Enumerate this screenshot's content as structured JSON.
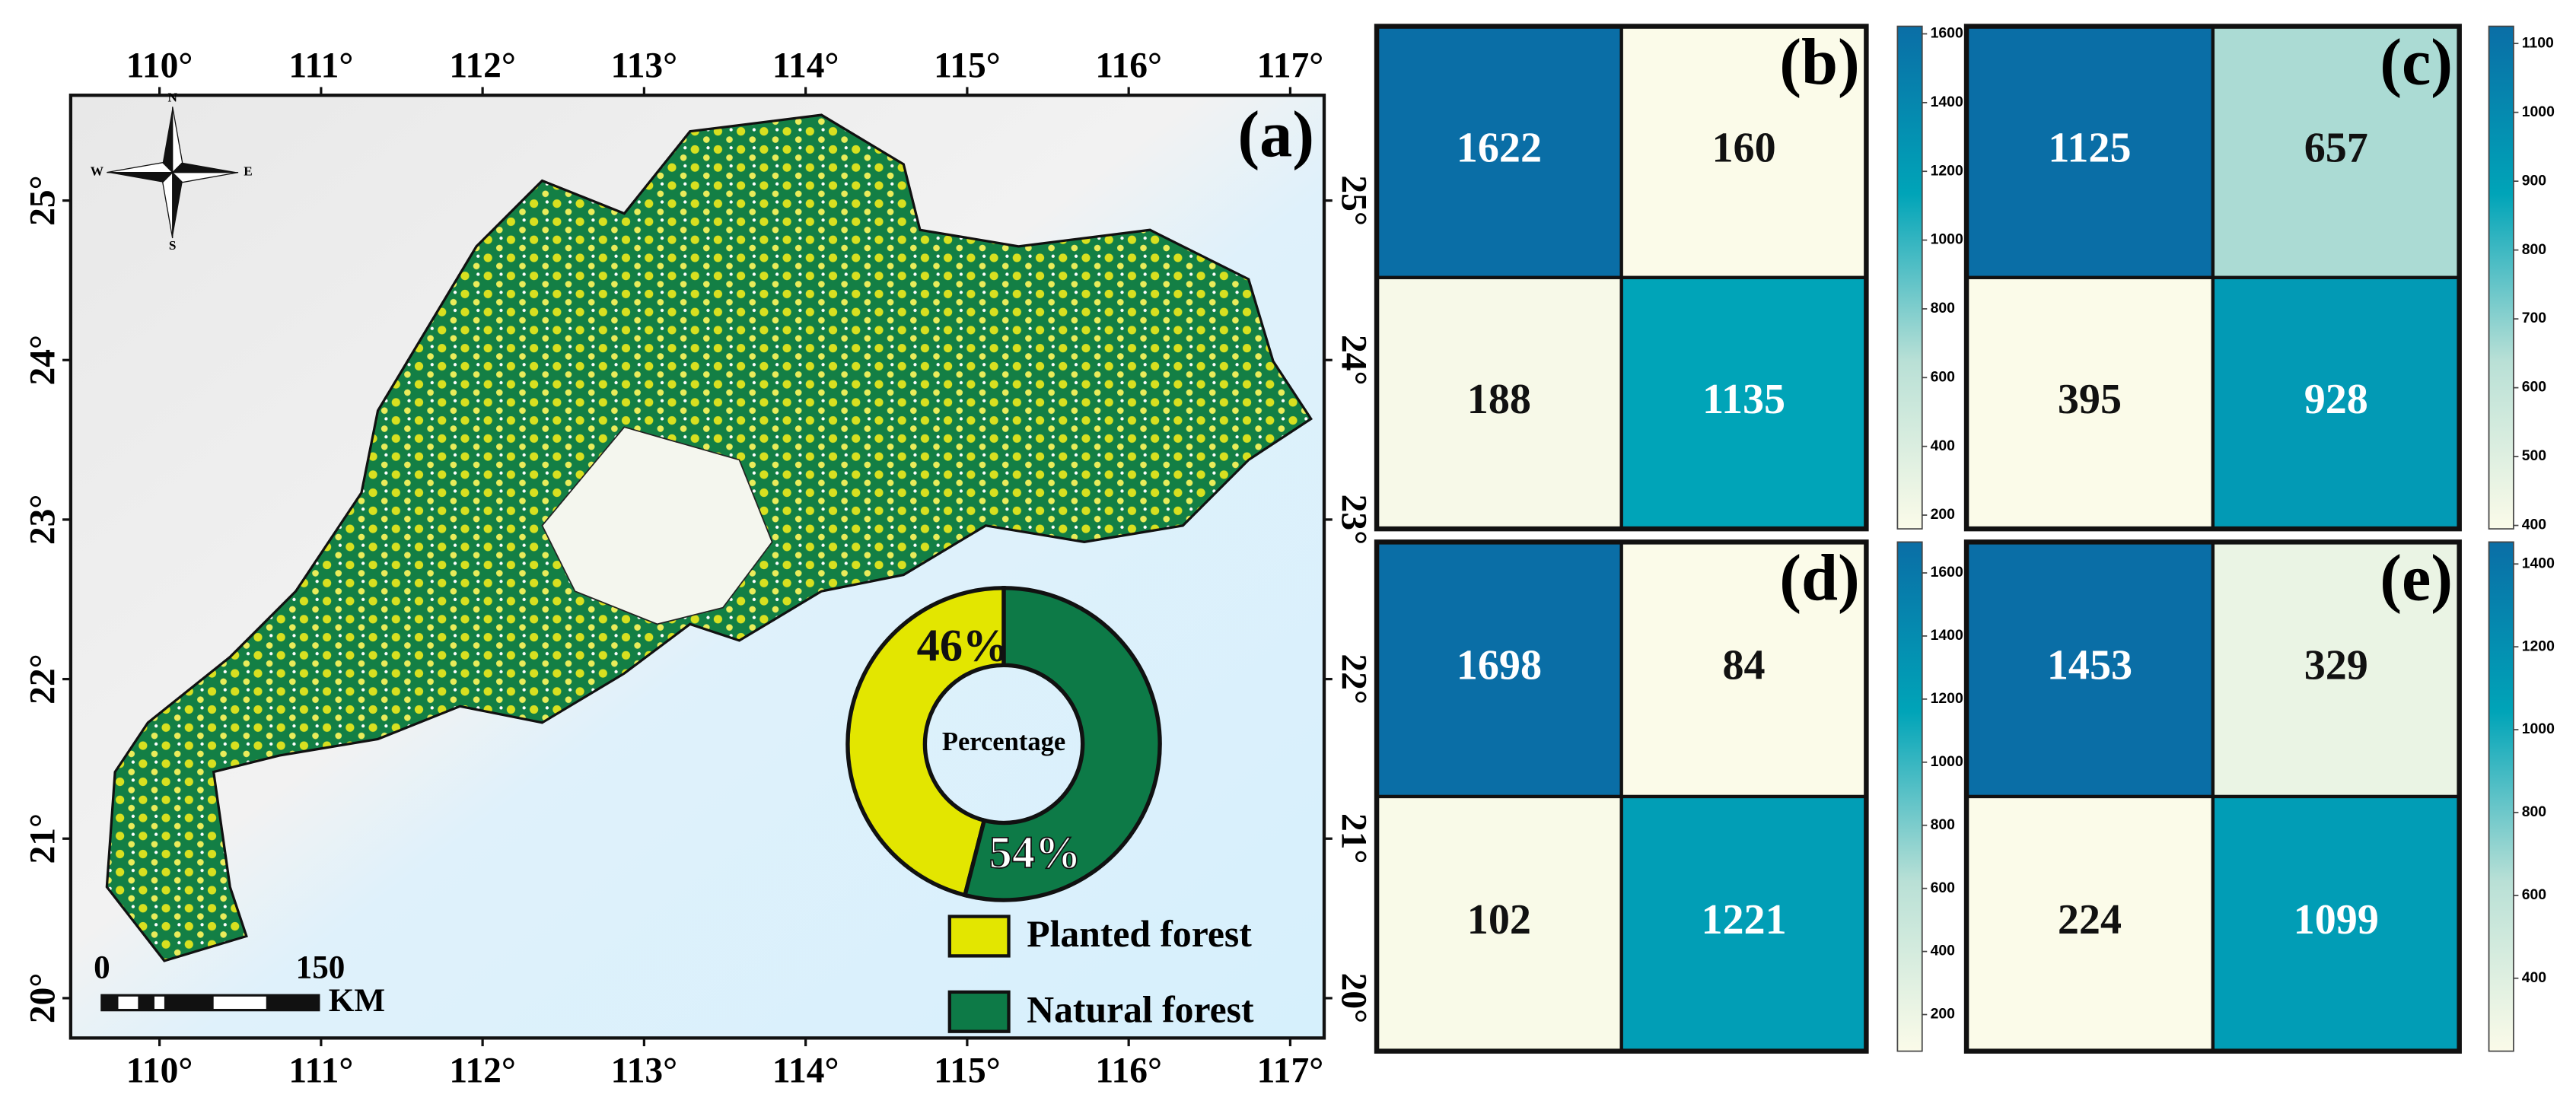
{
  "map": {
    "title": "(a)",
    "xlim": [
      109.45,
      117.21
    ],
    "ylim": [
      19.75,
      25.66
    ],
    "xticks": [
      {
        "value": 110,
        "label": "110°"
      },
      {
        "value": 111,
        "label": "111°"
      },
      {
        "value": 112,
        "label": "112°"
      },
      {
        "value": 113,
        "label": "113°"
      },
      {
        "value": 114,
        "label": "114°"
      },
      {
        "value": 115,
        "label": "115°"
      },
      {
        "value": 116,
        "label": "116°"
      },
      {
        "value": 117,
        "label": "117°"
      }
    ],
    "yticks": [
      {
        "value": 20,
        "label": "20°"
      },
      {
        "value": 21,
        "label": "21°"
      },
      {
        "value": 22,
        "label": "22°"
      },
      {
        "value": 23,
        "label": "23°"
      },
      {
        "value": 24,
        "label": "24°"
      },
      {
        "value": 25,
        "label": "25°"
      }
    ],
    "compass": [
      "N",
      "E",
      "S",
      "W"
    ],
    "scale_bar": {
      "start": "0",
      "end": "150",
      "unit": "KM"
    }
  },
  "chart_data": [
    {
      "type": "pie",
      "center_label": "Percentage",
      "categories": [
        "Planted forest",
        "Natural forest"
      ],
      "values": [
        46,
        54
      ],
      "value_labels": [
        "46%",
        "54%"
      ],
      "colors": [
        "#e3e600",
        "#0d7a47"
      ]
    },
    {
      "type": "heatmap",
      "title": "(b)",
      "z": [
        [
          1622,
          160
        ],
        [
          188,
          1135
        ]
      ],
      "zlim": [
        160,
        1622
      ],
      "zticks": [
        200,
        400,
        600,
        800,
        1000,
        1200,
        1400,
        1600
      ],
      "colormap": [
        "#fbfbe9",
        "#b9e0d6",
        "#00a4b8",
        "#0a6ea6"
      ]
    },
    {
      "type": "heatmap",
      "title": "(c)",
      "z": [
        [
          1125,
          657
        ],
        [
          395,
          928
        ]
      ],
      "zlim": [
        395,
        1125
      ],
      "zticks": [
        400,
        500,
        600,
        700,
        800,
        900,
        1000,
        1100
      ],
      "colormap": [
        "#fbfbe9",
        "#b9e0d6",
        "#00a4b8",
        "#0a6ea6"
      ]
    },
    {
      "type": "heatmap",
      "title": "(d)",
      "z": [
        [
          1698,
          84
        ],
        [
          102,
          1221
        ]
      ],
      "zlim": [
        84,
        1698
      ],
      "zticks": [
        200,
        400,
        600,
        800,
        1000,
        1200,
        1400,
        1600
      ],
      "colormap": [
        "#fbfbe9",
        "#b9e0d6",
        "#00a4b8",
        "#0a6ea6"
      ]
    },
    {
      "type": "heatmap",
      "title": "(e)",
      "z": [
        [
          1453,
          329
        ],
        [
          224,
          1099
        ]
      ],
      "zlim": [
        224,
        1453
      ],
      "zticks": [
        400,
        600,
        800,
        1000,
        1200,
        1400
      ],
      "colormap": [
        "#fbfbe9",
        "#b9e0d6",
        "#00a4b8",
        "#0a6ea6"
      ]
    }
  ]
}
